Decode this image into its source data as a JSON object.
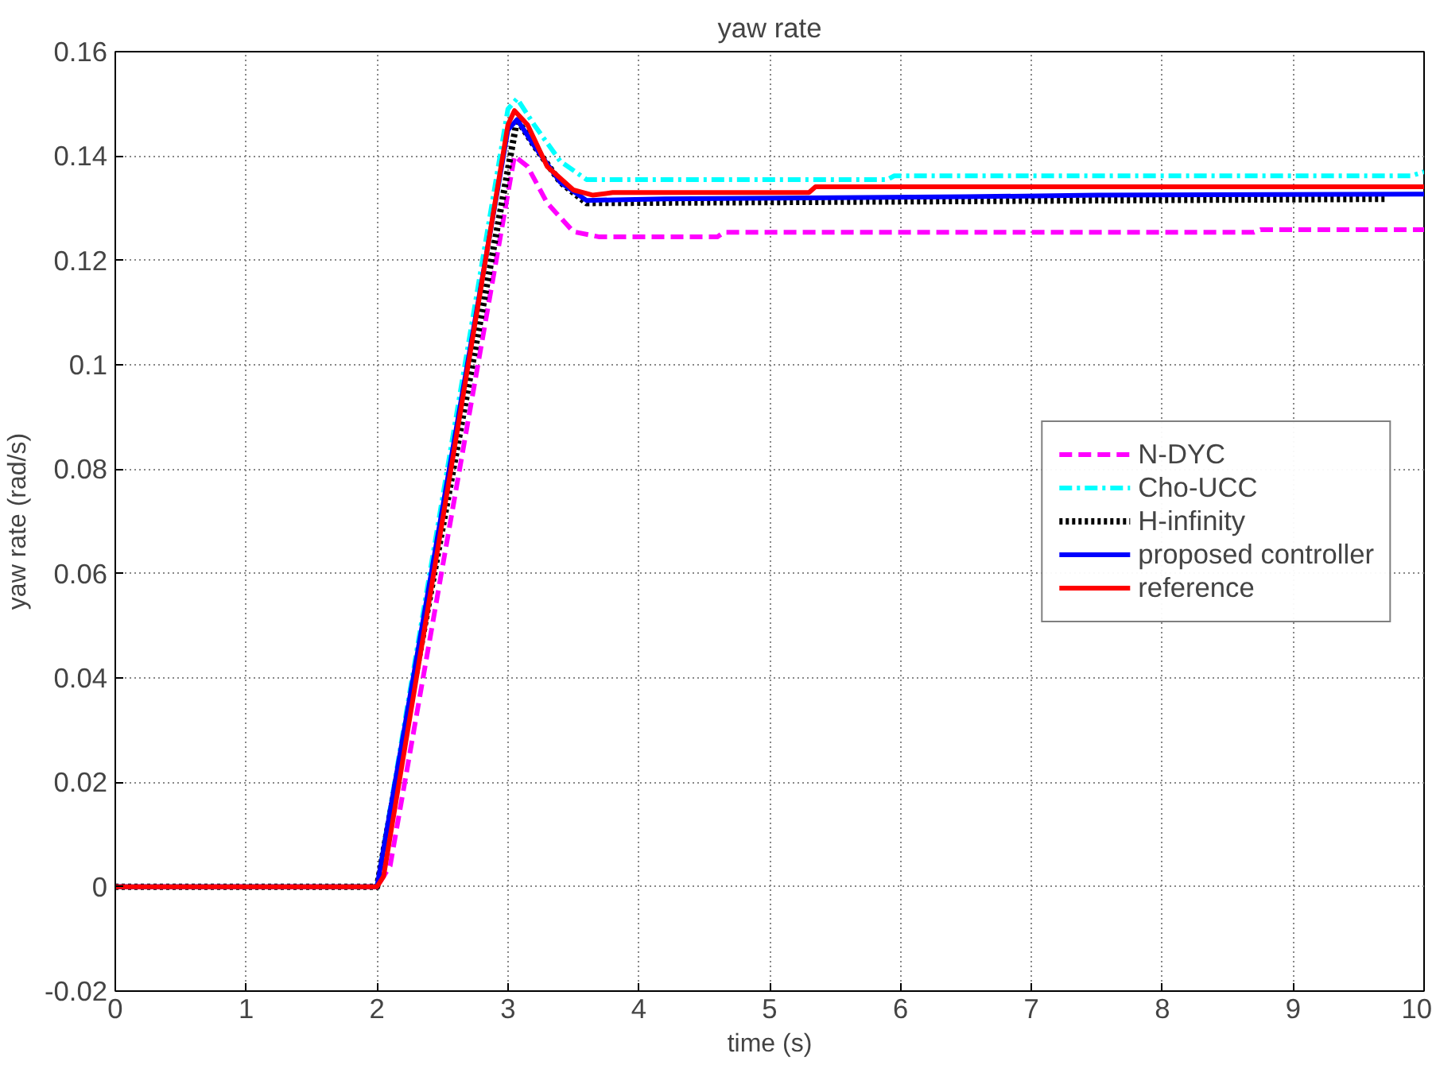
{
  "chart_data": {
    "type": "line",
    "title": "yaw rate",
    "xlabel": "time (s)",
    "ylabel": "yaw rate (rad/s)",
    "xlim": [
      0,
      10
    ],
    "xticks": [
      0,
      1,
      2,
      3,
      4,
      5,
      6,
      7,
      8,
      9,
      10
    ],
    "ylim": [
      -0.02,
      0.16
    ],
    "yticks": [
      -0.02,
      0,
      0.02,
      0.04,
      0.06,
      0.08,
      0.1,
      0.12,
      0.14,
      0.16
    ],
    "grid": true,
    "legend": "right",
    "marker": "none",
    "series": [
      {
        "name": "N-DYC",
        "color": "#ff00ff",
        "line_style": "dashed",
        "x": [
          0,
          2,
          2.1,
          3.05,
          3.15,
          3.3,
          3.5,
          3.7,
          4.6,
          4.65,
          8.7,
          8.75,
          10
        ],
        "values": [
          0,
          0,
          0.004,
          0.14,
          0.138,
          0.131,
          0.1255,
          0.1245,
          0.1245,
          0.1254,
          0.1254,
          0.1259,
          0.1259
        ]
      },
      {
        "name": "Cho-UCC",
        "color": "#00ffff",
        "line_style": "dashdot",
        "x": [
          0,
          2,
          3.0,
          3.07,
          3.2,
          3.4,
          3.6,
          5.9,
          5.95,
          9.9,
          10
        ],
        "values": [
          0,
          0,
          0.149,
          0.151,
          0.146,
          0.139,
          0.1355,
          0.1355,
          0.1362,
          0.1362,
          0.137
        ]
      },
      {
        "name": "H-infinity",
        "color": "#000000",
        "line_style": "dotted",
        "x": [
          0,
          2,
          3.07,
          3.2,
          3.4,
          3.6,
          9.7
        ],
        "values": [
          0,
          0,
          0.147,
          0.142,
          0.135,
          0.131,
          0.1318
        ]
      },
      {
        "name": "proposed controller",
        "color": "#0000ff",
        "line_style": "solid",
        "x": [
          0,
          2,
          3.0,
          3.07,
          3.2,
          3.4,
          3.6,
          4.2,
          6.5,
          7.5,
          10
        ],
        "values": [
          0,
          0,
          0.145,
          0.147,
          0.142,
          0.135,
          0.1315,
          0.1318,
          0.1322,
          0.1325,
          0.1327
        ]
      },
      {
        "name": "reference",
        "color": "#ff0000",
        "line_style": "solid",
        "x": [
          0,
          2,
          2.05,
          3.0,
          3.05,
          3.15,
          3.3,
          3.5,
          3.65,
          3.8,
          5.3,
          5.35,
          10
        ],
        "values": [
          0,
          0,
          0.002,
          0.146,
          0.1487,
          0.146,
          0.138,
          0.1335,
          0.1325,
          0.133,
          0.133,
          0.1341,
          0.1341
        ]
      }
    ]
  }
}
